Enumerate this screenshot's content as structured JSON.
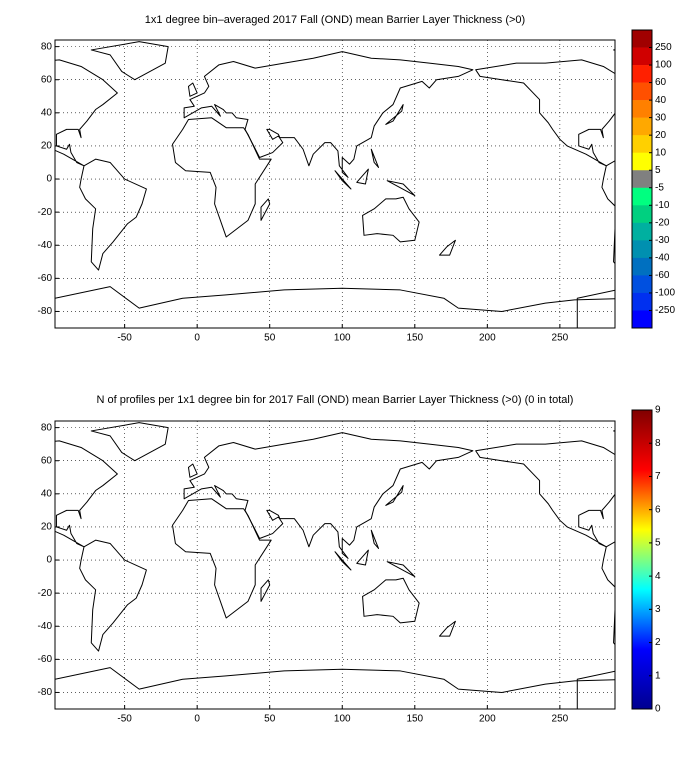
{
  "panels": [
    {
      "title": "1x1 degree bin–averaged 2017 Fall (OND) mean Barrier Layer Thickness (>0)",
      "xlim": [
        -98,
        288
      ],
      "ylim": [
        -90,
        84
      ],
      "xticks": [
        -50,
        0,
        50,
        100,
        150,
        200,
        250
      ],
      "yticks": [
        -80,
        -60,
        -40,
        -20,
        0,
        20,
        40,
        60,
        80
      ],
      "colorbar": {
        "ticks": [
          250,
          100,
          60,
          40,
          30,
          20,
          10,
          5,
          -5,
          -10,
          -20,
          -30,
          -40,
          -60,
          -100,
          -250
        ],
        "colors": [
          "#a00000",
          "#d00000",
          "#ff2000",
          "#ff5000",
          "#ff8000",
          "#ffa800",
          "#ffd000",
          "#ffff00",
          "#808080",
          "#00ff80",
          "#00d080",
          "#00b0a0",
          "#0090b0",
          "#0070c0",
          "#0050e0",
          "#0030f0",
          "#0000ff"
        ]
      }
    },
    {
      "title": "N of profiles per 1x1 degree bin for 2017 Fall (OND) mean Barrier Layer Thickness (>0) (0 in total)",
      "xlim": [
        -98,
        288
      ],
      "ylim": [
        -90,
        84
      ],
      "xticks": [
        -50,
        0,
        50,
        100,
        150,
        200,
        250
      ],
      "yticks": [
        -80,
        -60,
        -40,
        -20,
        0,
        20,
        40,
        60,
        80
      ],
      "colorbar": {
        "lim": [
          0,
          9
        ],
        "ticks": [
          0,
          1,
          2,
          3,
          4,
          5,
          6,
          7,
          8,
          9
        ],
        "colors": [
          "#00008f",
          "#0000ff",
          "#00ffff",
          "#ffff00",
          "#ff0000",
          "#800000"
        ]
      }
    }
  ]
}
